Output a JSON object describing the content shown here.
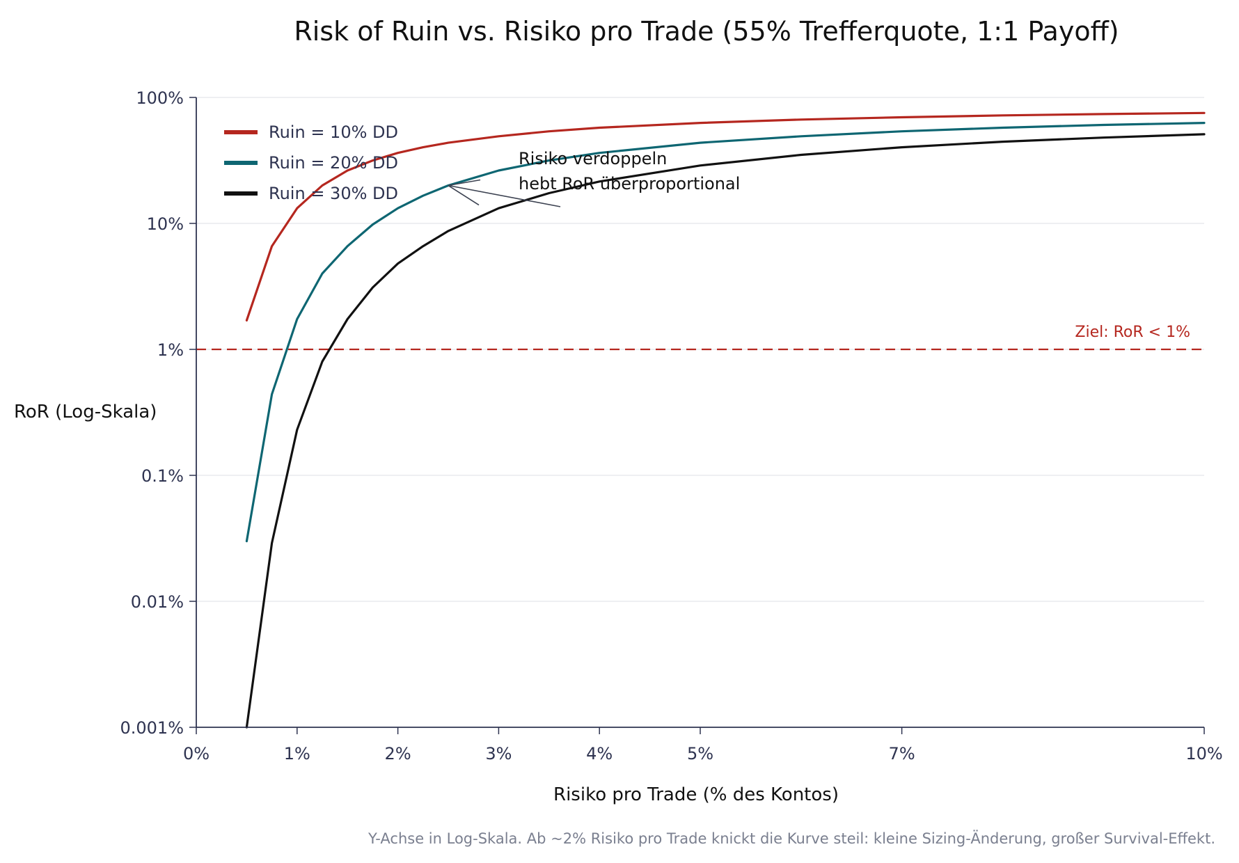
{
  "chart_data": {
    "type": "line",
    "title": "Risk of Ruin vs. Risiko pro Trade (55% Trefferquote, 1:1 Payoff)",
    "xlabel": "Risiko pro Trade (% des Kontos)",
    "ylabel": "RoR (Log-Skala)",
    "y_scale": "log",
    "xlim": [
      0,
      10
    ],
    "ylim": [
      0.001,
      100
    ],
    "x_ticks": [
      0,
      1,
      2,
      3,
      4,
      5,
      7,
      10
    ],
    "x_tick_labels": [
      "0%",
      "1%",
      "2%",
      "3%",
      "4%",
      "5%",
      "7%",
      "10%"
    ],
    "y_ticks": [
      0.001,
      0.01,
      0.1,
      1,
      10,
      100
    ],
    "y_tick_labels": [
      "0.001%",
      "0.01%",
      "0.1%",
      "1%",
      "10%",
      "100%"
    ],
    "grid": "horizontal",
    "legend_position": "top-left",
    "x": [
      0.5,
      0.75,
      1,
      1.25,
      1.5,
      1.75,
      2,
      2.25,
      2.5,
      3,
      3.5,
      4,
      5,
      6,
      7,
      8,
      9,
      10
    ],
    "series": [
      {
        "name": "Ruin = 10% DD",
        "color": "#b5271f",
        "values": [
          1.7,
          6.6,
          13.2,
          20,
          26.3,
          31.6,
          36.3,
          40.2,
          43.7,
          49.2,
          53.8,
          57.5,
          62.8,
          66.7,
          69.6,
          72,
          73.8,
          75.3
        ]
      },
      {
        "name": "Ruin = 20% DD",
        "color": "#0e6672",
        "values": [
          0.03,
          0.44,
          1.74,
          4,
          6.6,
          9.8,
          13.2,
          16.6,
          20,
          26.3,
          31.6,
          36.3,
          43.7,
          49.2,
          53.8,
          57.5,
          60.5,
          62.8
        ]
      },
      {
        "name": "Ruin = 30% DD",
        "color": "#111111",
        "values": [
          0.001,
          0.029,
          0.23,
          0.8,
          1.74,
          3.1,
          4.8,
          6.6,
          8.7,
          13.2,
          17.4,
          21.5,
          28.8,
          35,
          40.2,
          44.5,
          48,
          51
        ]
      }
    ],
    "reference_line": {
      "y": 1,
      "label": "Ziel: RoR < 1%",
      "color": "#b5271f"
    },
    "annotation": {
      "lines": [
        "Risiko verdoppeln",
        "hebt RoR überproportional"
      ],
      "arrow_to": {
        "x": 2.5,
        "y": 20
      }
    },
    "caption": "Y-Achse in Log-Skala. Ab ~2% Risiko pro Trade knickt die Kurve steil: kleine Sizing-Änderung, großer Survival-Effekt."
  }
}
